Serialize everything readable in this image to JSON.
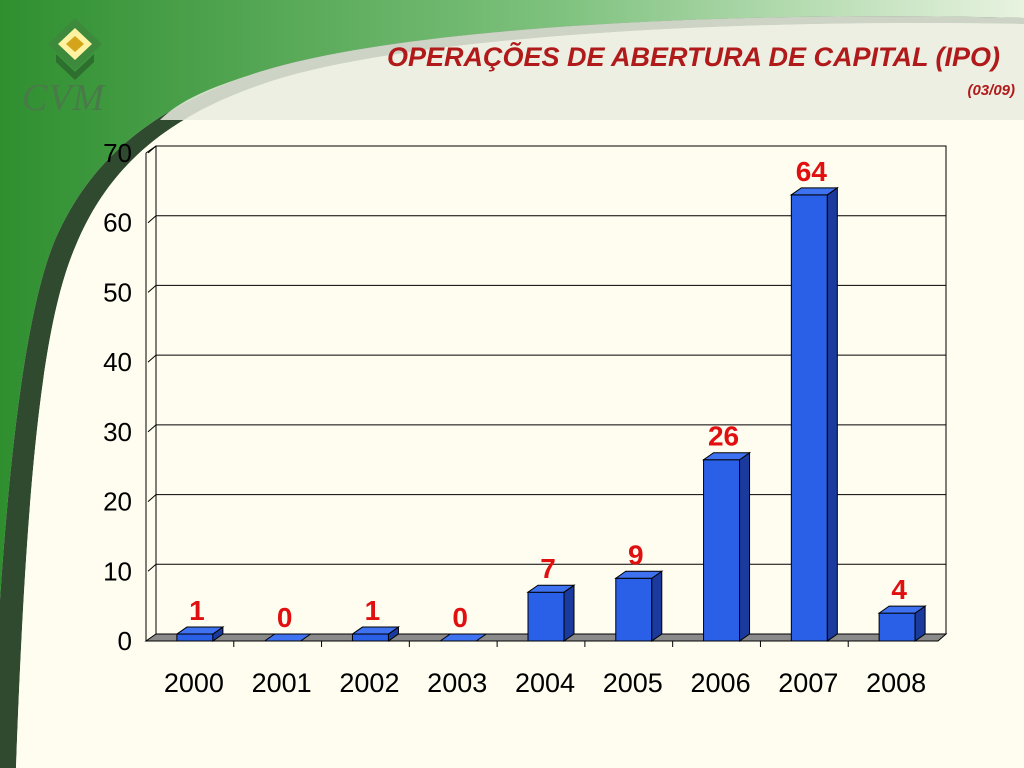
{
  "header": {
    "title": "OPERAÇÕES DE ABERTURA DE CAPITAL (IPO)",
    "subtitle": "(03/09)",
    "logo_text": "CVM"
  },
  "colors": {
    "bar_front": "#2a5fe8",
    "bar_side": "#1a3a9e",
    "bar_top": "#3f72f0",
    "label": "#e01010",
    "title": "#b11a1a",
    "background": "#fffdf0",
    "swoosh_green": "#3c9a3c"
  },
  "chart_data": {
    "type": "bar",
    "categories": [
      "2000",
      "2001",
      "2002",
      "2003",
      "2004",
      "2005",
      "2006",
      "2007",
      "2008"
    ],
    "values": [
      1,
      0,
      1,
      0,
      7,
      9,
      26,
      64,
      4
    ],
    "data_labels": [
      "1",
      "0",
      "1",
      "0",
      "7",
      "9",
      "26",
      "64",
      "4"
    ],
    "title": "OPERAÇÕES DE ABERTURA DE CAPITAL (IPO)",
    "subtitle": "(03/09)",
    "xlabel": "",
    "ylabel": "",
    "ylim": [
      0,
      70
    ],
    "yticks": [
      "0",
      "10",
      "20",
      "30",
      "40",
      "50",
      "60",
      "70"
    ],
    "grid": true,
    "legend": "none",
    "style": "3d"
  }
}
